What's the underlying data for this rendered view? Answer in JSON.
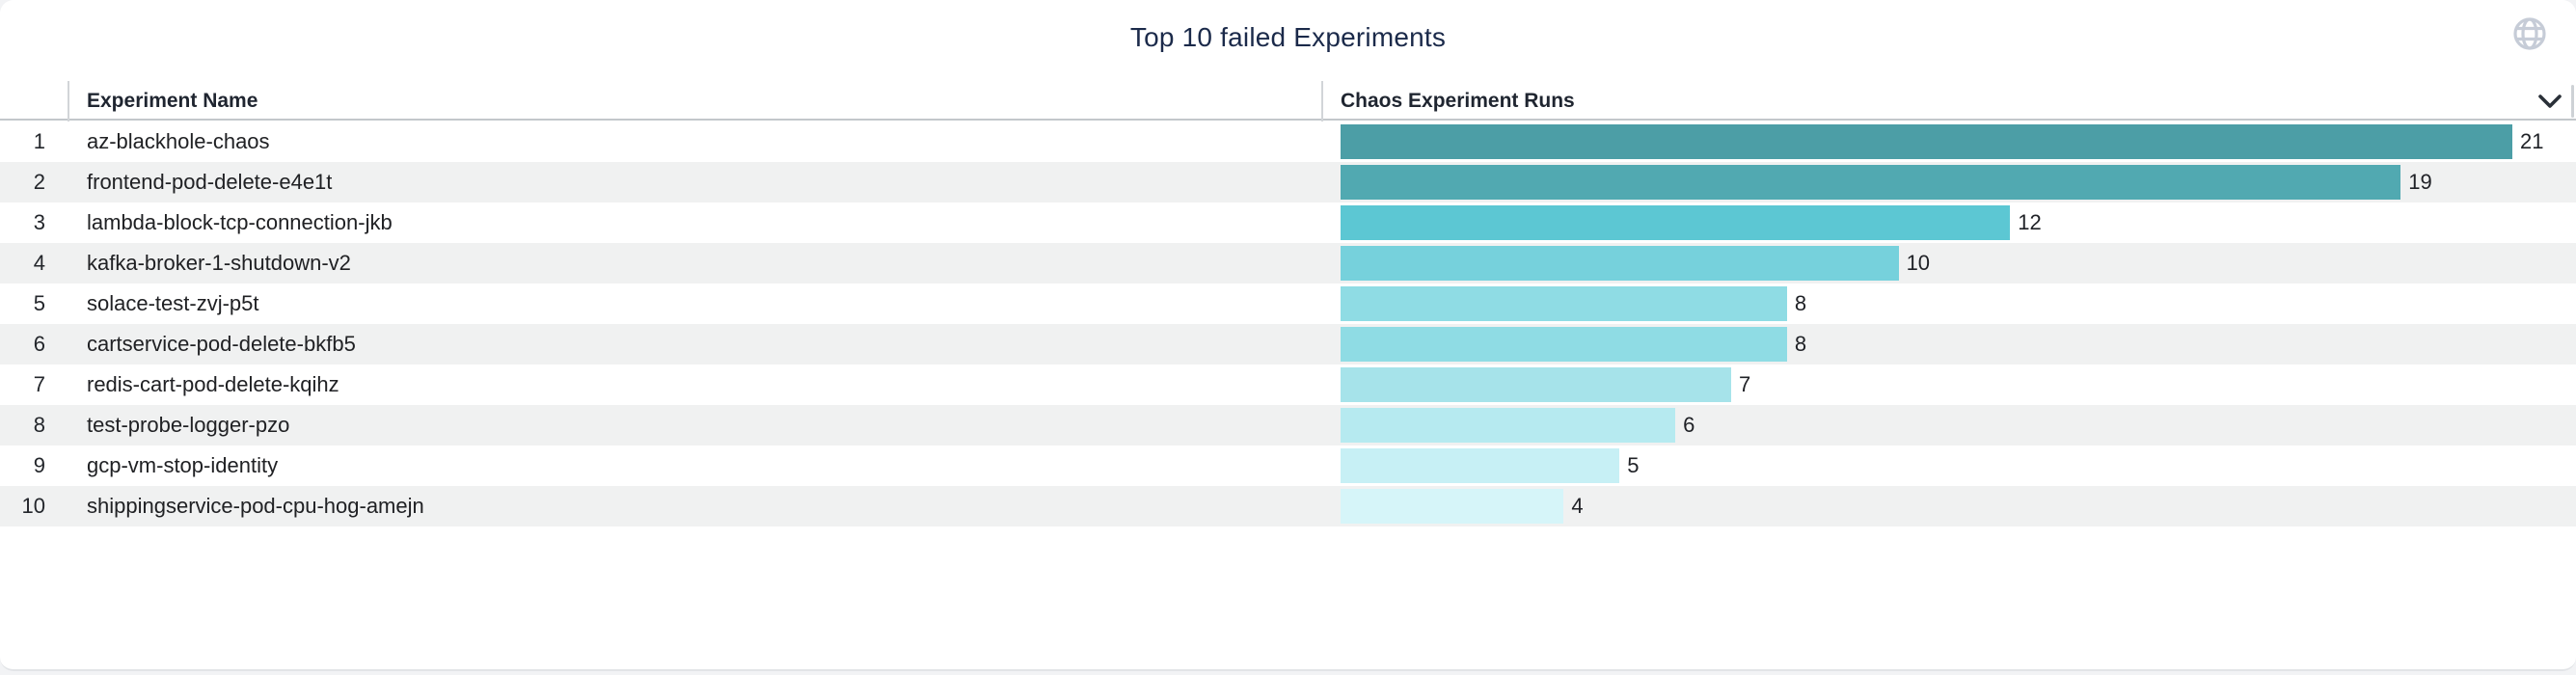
{
  "page": {
    "title": "Top 10 failed Experiments",
    "card_background": "#ffffff",
    "page_background": "#f2f3f5",
    "title_color": "#1b2a4a"
  },
  "icons": {
    "top_right": "globe-icon",
    "globe_color": "#c6ccd7",
    "column_menu": "chevron-down-icon",
    "chevron_color": "#2a3038"
  },
  "header": {
    "columns": [
      {
        "label": "Experiment Name"
      },
      {
        "label": "Chaos Experiment Runs"
      }
    ]
  },
  "table": {
    "rows": [
      {
        "index": "1",
        "name": "az-blackhole-chaos",
        "runs": 21,
        "color": "#4C9EA6"
      },
      {
        "index": "2",
        "name": "frontend-pod-delete-e4e1t",
        "runs": 19,
        "color": "#51A9B1"
      },
      {
        "index": "3",
        "name": "lambda-block-tcp-connection-jkb",
        "runs": 12,
        "color": "#5CC7D3"
      },
      {
        "index": "4",
        "name": "kafka-broker-1-shutdown-v2",
        "runs": 10,
        "color": "#76D1DC"
      },
      {
        "index": "5",
        "name": "solace-test-zvj-p5t",
        "runs": 8,
        "color": "#8FDCE4"
      },
      {
        "index": "6",
        "name": "cartservice-pod-delete-bkfb5",
        "runs": 8,
        "color": "#8FDCE4"
      },
      {
        "index": "7",
        "name": "redis-cart-pod-delete-kqihz",
        "runs": 7,
        "color": "#A6E3EA"
      },
      {
        "index": "8",
        "name": "test-probe-logger-pzo",
        "runs": 6,
        "color": "#B6EAF0"
      },
      {
        "index": "9",
        "name": "gcp-vm-stop-identity",
        "runs": 5,
        "color": "#C7F0F5"
      },
      {
        "index": "10",
        "name": "shippingservice-pod-cpu-hog-amejn",
        "runs": 4,
        "color": "#D6F5F9"
      }
    ]
  },
  "chart_data": {
    "type": "bar",
    "orientation": "horizontal",
    "title": "Top 10 failed Experiments",
    "xlabel": "Chaos Experiment Runs",
    "ylabel": "Experiment Name",
    "categories": [
      "az-blackhole-chaos",
      "frontend-pod-delete-e4e1t",
      "lambda-block-tcp-connection-jkb",
      "kafka-broker-1-shutdown-v2",
      "solace-test-zvj-p5t",
      "cartservice-pod-delete-bkfb5",
      "redis-cart-pod-delete-kqihz",
      "test-probe-logger-pzo",
      "gcp-vm-stop-identity",
      "shippingservice-pod-cpu-hog-amejn"
    ],
    "values": [
      21,
      19,
      12,
      10,
      8,
      8,
      7,
      6,
      5,
      4
    ],
    "xlim": [
      0,
      21
    ],
    "grid": false,
    "legend": "none",
    "bar_colors": [
      "#4C9EA6",
      "#51A9B1",
      "#5CC7D3",
      "#76D1DC",
      "#8FDCE4",
      "#8FDCE4",
      "#A6E3EA",
      "#B6EAF0",
      "#C7F0F5",
      "#D6F5F9"
    ],
    "data_labels": true
  }
}
